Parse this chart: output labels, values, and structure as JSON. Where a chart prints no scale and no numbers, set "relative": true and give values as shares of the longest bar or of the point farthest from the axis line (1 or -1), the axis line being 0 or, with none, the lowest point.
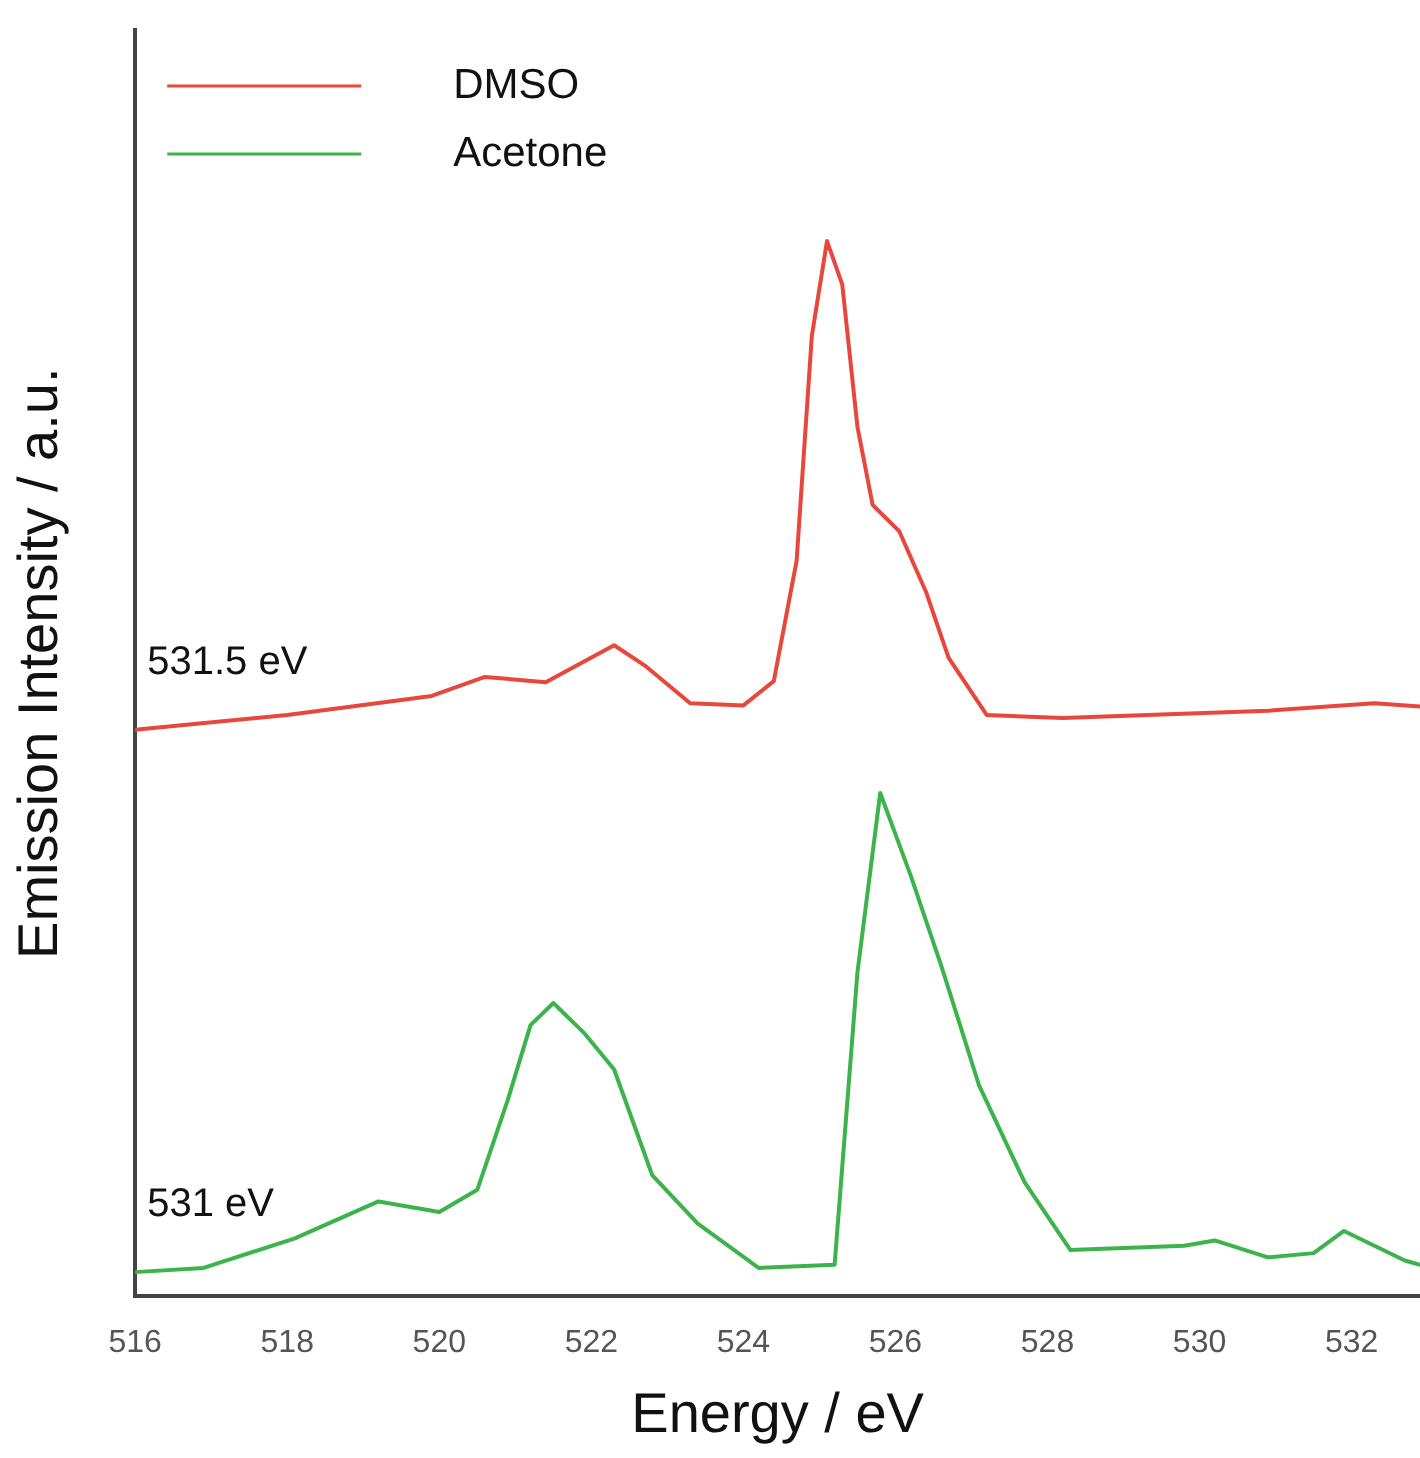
{
  "chart_data": {
    "type": "line",
    "xlabel": "Energy / eV",
    "ylabel": "Emission Intensity / a.u.",
    "relative": true,
    "xlim": [
      516,
      532.9
    ],
    "xticks": [
      516,
      518,
      520,
      522,
      524,
      526,
      528,
      530,
      532
    ],
    "grid": false,
    "legend": "top left",
    "marker": "none",
    "line_style": "solid",
    "annotations": [
      "531.5 eV",
      "531 eV"
    ],
    "series": [
      {
        "name": "DMSO",
        "color": "#e8473b",
        "x": [
          516,
          518,
          519.9,
          520.6,
          521.4,
          522.3,
          522.7,
          523.3,
          524,
          524.4,
          524.7,
          524.9,
          525.1,
          525.3,
          525.5,
          525.7,
          526.05,
          526.4,
          526.7,
          527.2,
          528.2,
          530.9,
          532.3,
          532.9
        ],
        "values": [
          0.537,
          0.551,
          0.569,
          0.587,
          0.582,
          0.617,
          0.598,
          0.562,
          0.56,
          0.583,
          0.697,
          0.91,
          1,
          0.959,
          0.824,
          0.75,
          0.725,
          0.668,
          0.605,
          0.551,
          0.548,
          0.555,
          0.562,
          0.559
        ]
      },
      {
        "name": "Acetone",
        "color": "#3cb44b",
        "x": [
          516,
          516.9,
          518.1,
          519.2,
          520,
          520.5,
          520.9,
          521.2,
          521.5,
          521.9,
          522.3,
          522.8,
          523.4,
          524.2,
          525.2,
          525.5,
          525.8,
          526.2,
          526.6,
          527.1,
          527.7,
          528.3,
          529.8,
          530.2,
          530.9,
          531.5,
          531.9,
          532.7,
          532.9
        ],
        "values": [
          0.023,
          0.027,
          0.055,
          0.09,
          0.08,
          0.101,
          0.186,
          0.257,
          0.278,
          0.25,
          0.215,
          0.115,
          0.069,
          0.027,
          0.03,
          0.307,
          0.477,
          0.399,
          0.314,
          0.2,
          0.108,
          0.044,
          0.048,
          0.053,
          0.037,
          0.041,
          0.062,
          0.034,
          0.03
        ]
      }
    ]
  }
}
